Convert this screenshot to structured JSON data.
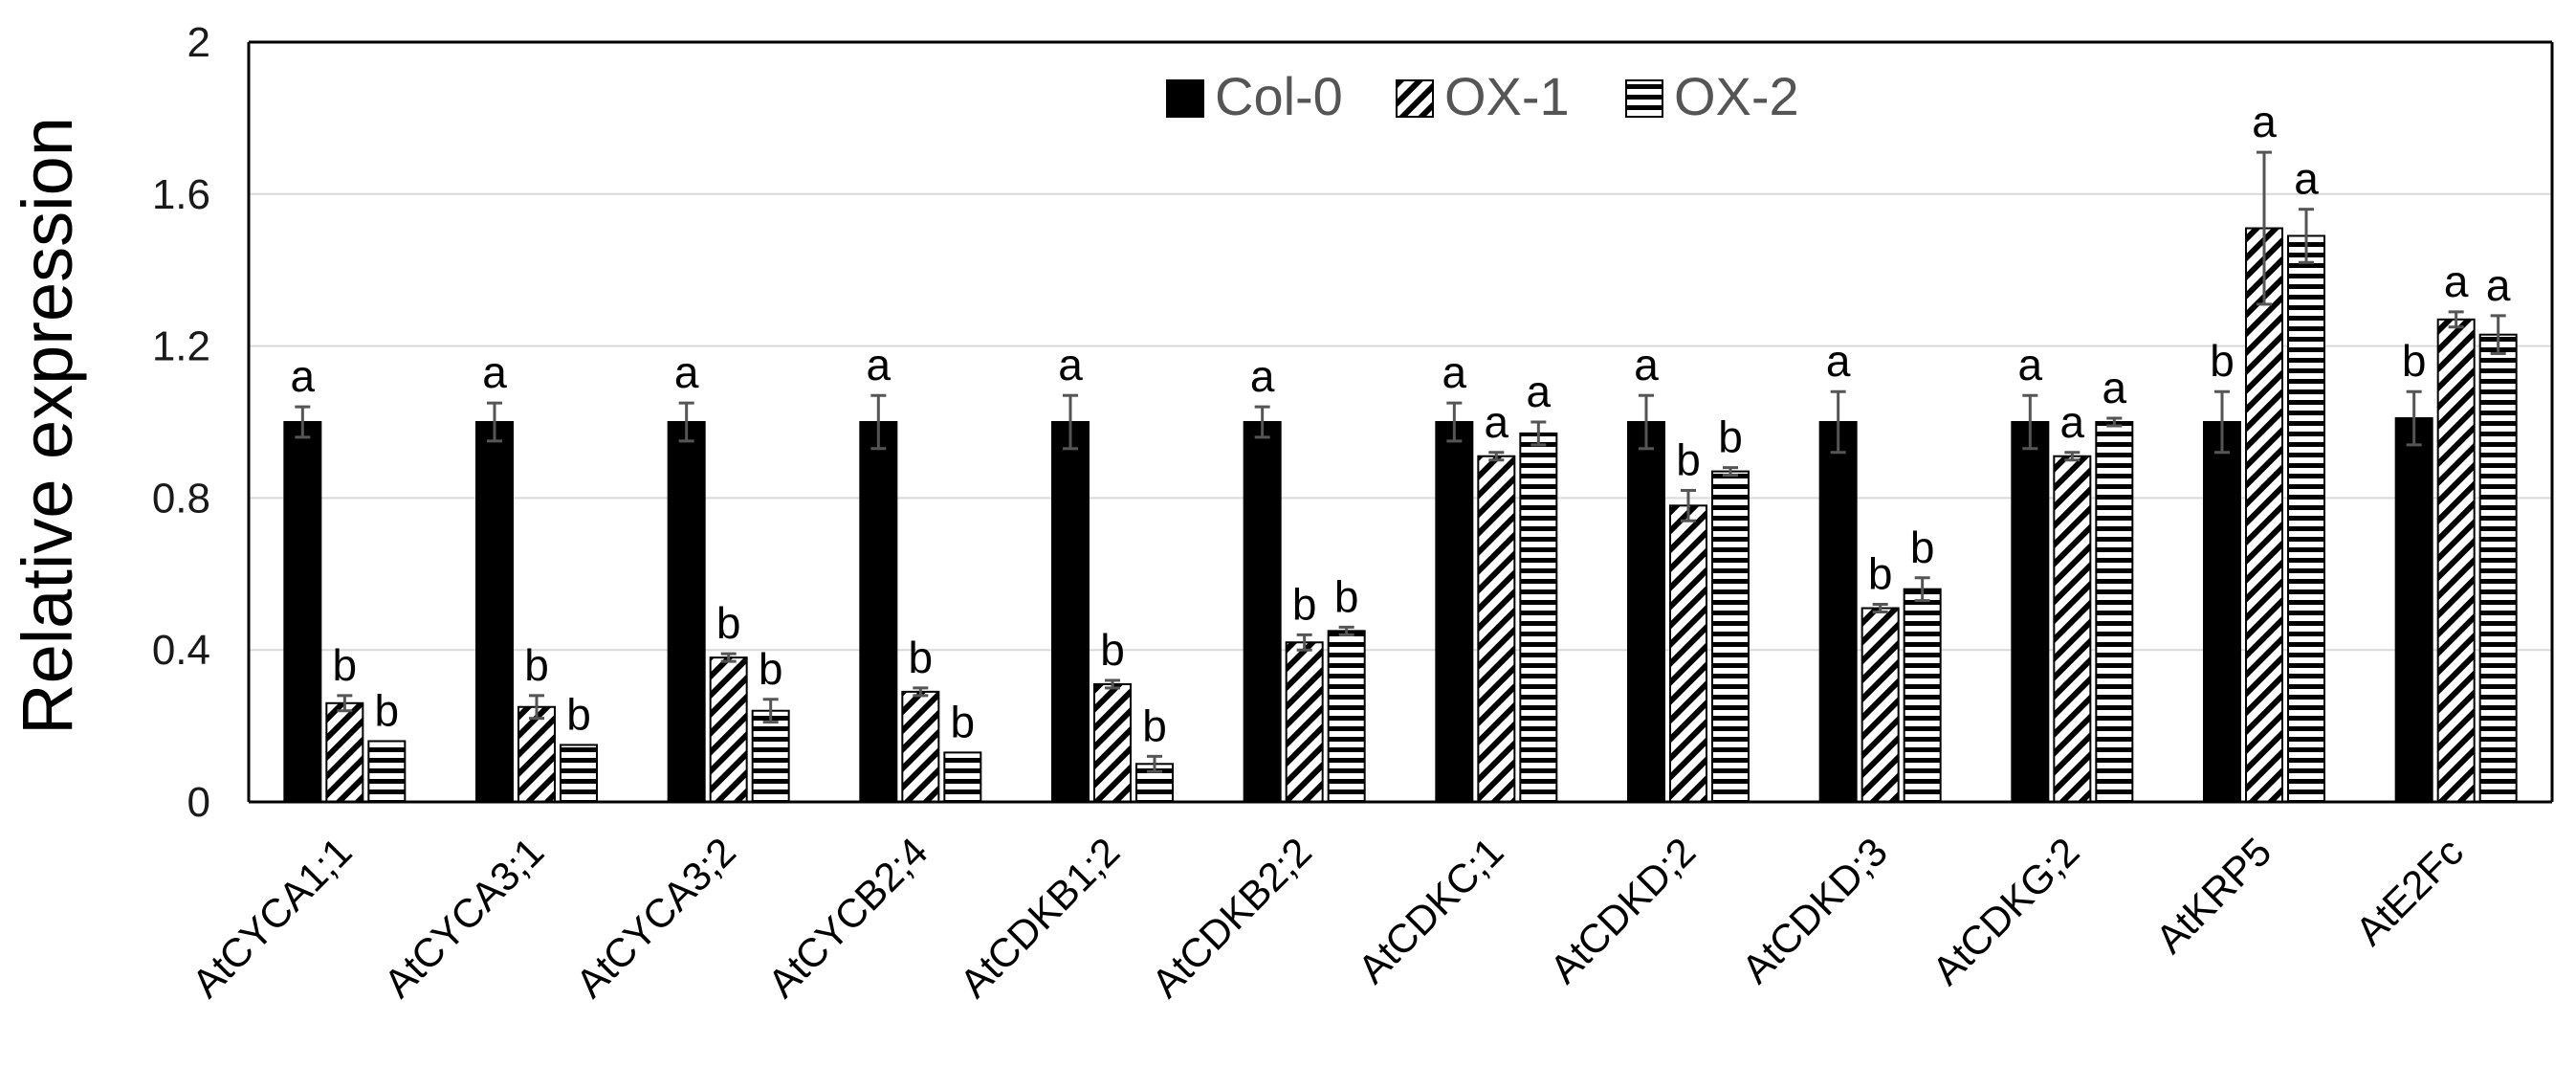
{
  "chart_data": {
    "type": "bar",
    "title": "",
    "xlabel": "",
    "ylabel": "Relative expression",
    "ylim": [
      0,
      2
    ],
    "yticks": [
      "0",
      "0.4",
      "0.8",
      "1.2",
      "1.6",
      "2"
    ],
    "ytick_values": [
      0,
      0.4,
      0.8,
      1.2,
      1.6,
      2.0
    ],
    "grid": true,
    "legend_position": "top-center",
    "categories": [
      "AtCYCA1;1",
      "AtCYCA3;1",
      "AtCYCA3;2",
      "AtCYCB2;4",
      "AtCDKB1;2",
      "AtCDKB2;2",
      "AtCDKC;1",
      "AtCDKD;2",
      "AtCDKD;3",
      "AtCDKG;2",
      "AtKRP5",
      "AtE2Fc"
    ],
    "series": [
      {
        "name": "Col-0",
        "pattern": "solid",
        "values": [
          1.0,
          1.0,
          1.0,
          1.0,
          1.0,
          1.0,
          1.0,
          1.0,
          1.0,
          1.0,
          1.0,
          1.01
        ],
        "errors": [
          0.04,
          0.05,
          0.05,
          0.07,
          0.07,
          0.04,
          0.05,
          0.07,
          0.08,
          0.07,
          0.08,
          0.07
        ],
        "labels": [
          "a",
          "a",
          "a",
          "a",
          "a",
          "a",
          "a",
          "a",
          "a",
          "a",
          "b",
          "b"
        ]
      },
      {
        "name": "OX-1",
        "pattern": "diagonal",
        "values": [
          0.26,
          0.25,
          0.38,
          0.29,
          0.31,
          0.42,
          0.91,
          0.78,
          0.51,
          0.91,
          1.51,
          1.27
        ],
        "errors": [
          0.02,
          0.03,
          0.01,
          0.01,
          0.01,
          0.02,
          0.01,
          0.04,
          0.01,
          0.01,
          0.2,
          0.02
        ],
        "labels": [
          "b",
          "b",
          "b",
          "b",
          "b",
          "b",
          "a",
          "b",
          "b",
          "a",
          "a",
          "a"
        ]
      },
      {
        "name": "OX-2",
        "pattern": "horizontal",
        "values": [
          0.16,
          0.15,
          0.24,
          0.13,
          0.1,
          0.45,
          0.97,
          0.87,
          0.56,
          1.0,
          1.49,
          1.23
        ],
        "errors": [
          0.0,
          0.0,
          0.03,
          0.0,
          0.02,
          0.01,
          0.03,
          0.01,
          0.03,
          0.01,
          0.07,
          0.05
        ],
        "labels": [
          "b",
          "b",
          "b",
          "b",
          "b",
          "b",
          "a",
          "b",
          "b",
          "a",
          "a",
          "a"
        ]
      }
    ]
  }
}
